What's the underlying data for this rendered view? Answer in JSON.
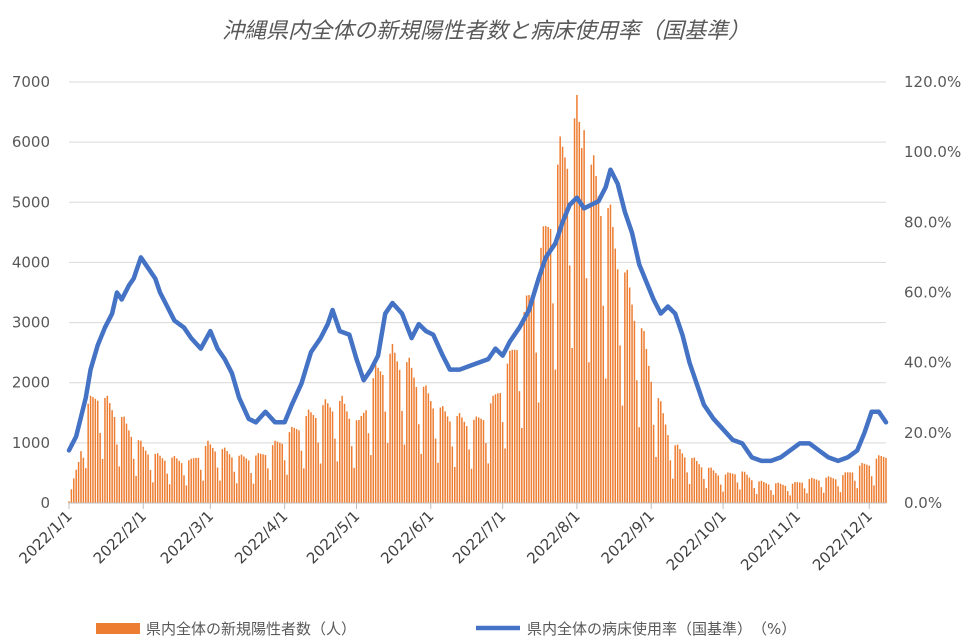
{
  "chart_data": {
    "type": "bar+line",
    "title": "沖縄県内全体の新規陽性者数と病床使用率（国基準）",
    "x_start": "2022-01-01",
    "x_end": "2022-12-08",
    "x_ticks": [
      "2022/1/1",
      "2022/2/1",
      "2022/3/1",
      "2022/4/1",
      "2022/5/1",
      "2022/6/1",
      "2022/7/1",
      "2022/8/1",
      "2022/9/1",
      "2022/10/1",
      "2022/11/1",
      "2022/12/1"
    ],
    "y_left": {
      "min": 0,
      "max": 7000,
      "ticks": [
        "0",
        "1000",
        "2000",
        "3000",
        "4000",
        "5000",
        "6000",
        "7000"
      ]
    },
    "y_right": {
      "min": 0,
      "max": 120,
      "ticks": [
        "0.0%",
        "20.0%",
        "40.0%",
        "60.0%",
        "80.0%",
        "100.0%",
        "120.0%"
      ]
    },
    "gridlines": "horizontal",
    "legend_position": "bottom",
    "bar_series": {
      "name": "県内全体の新規陽性者数（人）",
      "color": "#ED7D31",
      "weekly_points": [
        [
          "2022-01-01",
          60
        ],
        [
          "2022-01-05",
          650
        ],
        [
          "2022-01-09",
          1500
        ],
        [
          "2022-01-13",
          1700
        ],
        [
          "2022-01-17",
          1550
        ],
        [
          "2022-01-22",
          1350
        ],
        [
          "2022-01-27",
          1100
        ],
        [
          "2022-02-01",
          850
        ],
        [
          "2022-02-07",
          720
        ],
        [
          "2022-02-14",
          680
        ],
        [
          "2022-02-21",
          640
        ],
        [
          "2022-02-28",
          900
        ],
        [
          "2022-03-07",
          800
        ],
        [
          "2022-03-14",
          700
        ],
        [
          "2022-03-21",
          720
        ],
        [
          "2022-03-28",
          900
        ],
        [
          "2022-04-04",
          1100
        ],
        [
          "2022-04-11",
          1350
        ],
        [
          "2022-04-18",
          1500
        ],
        [
          "2022-04-25",
          1550
        ],
        [
          "2022-05-02",
          1200
        ],
        [
          "2022-05-09",
          2000
        ],
        [
          "2022-05-16",
          2300
        ],
        [
          "2022-05-23",
          2100
        ],
        [
          "2022-05-30",
          1700
        ],
        [
          "2022-06-06",
          1400
        ],
        [
          "2022-06-13",
          1300
        ],
        [
          "2022-06-20",
          1250
        ],
        [
          "2022-06-27",
          1550
        ],
        [
          "2022-07-04",
          2200
        ],
        [
          "2022-07-11",
          3000
        ],
        [
          "2022-07-18",
          4000
        ],
        [
          "2022-07-25",
          5300
        ],
        [
          "2022-08-01",
          5900
        ],
        [
          "2022-08-06",
          5200
        ],
        [
          "2022-08-13",
          4600
        ],
        [
          "2022-08-20",
          3600
        ],
        [
          "2022-08-27",
          2800
        ],
        [
          "2022-09-03",
          1700
        ],
        [
          "2022-09-10",
          900
        ],
        [
          "2022-09-17",
          700
        ],
        [
          "2022-09-24",
          550
        ],
        [
          "2022-10-01",
          420
        ],
        [
          "2022-10-08",
          500
        ],
        [
          "2022-10-15",
          330
        ],
        [
          "2022-10-22",
          300
        ],
        [
          "2022-10-29",
          280
        ],
        [
          "2022-11-05",
          360
        ],
        [
          "2022-11-12",
          380
        ],
        [
          "2022-11-19",
          400
        ],
        [
          "2022-11-26",
          550
        ],
        [
          "2022-12-03",
          650
        ],
        [
          "2022-12-08",
          750
        ]
      ],
      "peak": [
        "2022-08-04",
        6200
      ]
    },
    "line_series": {
      "name": "県内全体の病床使用率（国基準）　（%）",
      "color": "#4472C4",
      "points": [
        [
          "2022-01-01",
          15
        ],
        [
          "2022-01-04",
          19
        ],
        [
          "2022-01-08",
          30
        ],
        [
          "2022-01-10",
          38
        ],
        [
          "2022-01-13",
          45
        ],
        [
          "2022-01-16",
          50
        ],
        [
          "2022-01-19",
          54
        ],
        [
          "2022-01-21",
          60
        ],
        [
          "2022-01-23",
          58
        ],
        [
          "2022-01-26",
          62
        ],
        [
          "2022-01-28",
          64
        ],
        [
          "2022-01-31",
          70
        ],
        [
          "2022-02-03",
          67
        ],
        [
          "2022-02-06",
          64
        ],
        [
          "2022-02-08",
          60
        ],
        [
          "2022-02-11",
          56
        ],
        [
          "2022-02-14",
          52
        ],
        [
          "2022-02-18",
          50
        ],
        [
          "2022-02-21",
          47
        ],
        [
          "2022-02-25",
          44
        ],
        [
          "2022-03-01",
          49
        ],
        [
          "2022-03-04",
          44
        ],
        [
          "2022-03-07",
          41
        ],
        [
          "2022-03-10",
          37
        ],
        [
          "2022-03-13",
          30
        ],
        [
          "2022-03-17",
          24
        ],
        [
          "2022-03-20",
          23
        ],
        [
          "2022-03-24",
          26
        ],
        [
          "2022-03-28",
          23
        ],
        [
          "2022-04-01",
          23
        ],
        [
          "2022-04-04",
          28
        ],
        [
          "2022-04-08",
          34
        ],
        [
          "2022-04-12",
          43
        ],
        [
          "2022-04-16",
          47
        ],
        [
          "2022-04-19",
          51
        ],
        [
          "2022-04-21",
          55
        ],
        [
          "2022-04-24",
          49
        ],
        [
          "2022-04-28",
          48
        ],
        [
          "2022-05-01",
          41
        ],
        [
          "2022-05-04",
          35
        ],
        [
          "2022-05-07",
          38
        ],
        [
          "2022-05-10",
          42
        ],
        [
          "2022-05-13",
          54
        ],
        [
          "2022-05-16",
          57
        ],
        [
          "2022-05-20",
          54
        ],
        [
          "2022-05-24",
          47
        ],
        [
          "2022-05-27",
          51
        ],
        [
          "2022-05-30",
          49
        ],
        [
          "2022-06-02",
          48
        ],
        [
          "2022-06-06",
          42
        ],
        [
          "2022-06-09",
          38
        ],
        [
          "2022-06-13",
          38
        ],
        [
          "2022-06-17",
          39
        ],
        [
          "2022-06-21",
          40
        ],
        [
          "2022-06-25",
          41
        ],
        [
          "2022-06-28",
          44
        ],
        [
          "2022-07-01",
          42
        ],
        [
          "2022-07-04",
          46
        ],
        [
          "2022-07-08",
          50
        ],
        [
          "2022-07-12",
          55
        ],
        [
          "2022-07-16",
          64
        ],
        [
          "2022-07-19",
          70
        ],
        [
          "2022-07-23",
          74
        ],
        [
          "2022-07-26",
          80
        ],
        [
          "2022-07-29",
          85
        ],
        [
          "2022-08-01",
          87
        ],
        [
          "2022-08-04",
          84
        ],
        [
          "2022-08-07",
          85
        ],
        [
          "2022-08-10",
          86
        ],
        [
          "2022-08-13",
          90
        ],
        [
          "2022-08-15",
          95
        ],
        [
          "2022-08-18",
          91
        ],
        [
          "2022-08-21",
          83
        ],
        [
          "2022-08-24",
          77
        ],
        [
          "2022-08-27",
          68
        ],
        [
          "2022-08-30",
          63
        ],
        [
          "2022-09-02",
          58
        ],
        [
          "2022-09-05",
          54
        ],
        [
          "2022-09-08",
          56
        ],
        [
          "2022-09-11",
          54
        ],
        [
          "2022-09-14",
          48
        ],
        [
          "2022-09-17",
          40
        ],
        [
          "2022-09-20",
          34
        ],
        [
          "2022-09-23",
          28
        ],
        [
          "2022-09-27",
          24
        ],
        [
          "2022-10-01",
          21
        ],
        [
          "2022-10-05",
          18
        ],
        [
          "2022-10-09",
          17
        ],
        [
          "2022-10-13",
          13
        ],
        [
          "2022-10-17",
          12
        ],
        [
          "2022-10-21",
          12
        ],
        [
          "2022-10-25",
          13
        ],
        [
          "2022-10-29",
          15
        ],
        [
          "2022-11-02",
          17
        ],
        [
          "2022-11-06",
          17
        ],
        [
          "2022-11-10",
          15
        ],
        [
          "2022-11-14",
          13
        ],
        [
          "2022-11-18",
          12
        ],
        [
          "2022-11-22",
          13
        ],
        [
          "2022-11-26",
          15
        ],
        [
          "2022-11-29",
          20
        ],
        [
          "2022-12-02",
          26
        ],
        [
          "2022-12-05",
          26
        ],
        [
          "2022-12-08",
          23
        ]
      ]
    }
  }
}
